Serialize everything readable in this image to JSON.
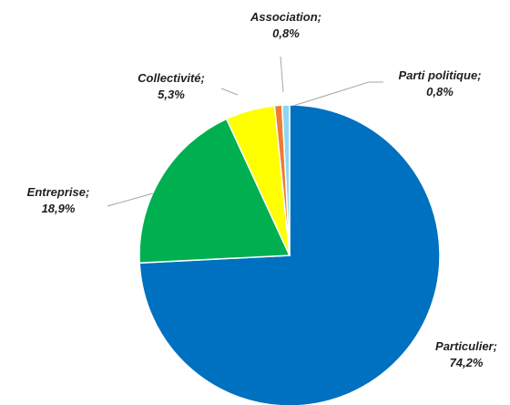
{
  "chart_data": {
    "type": "pie",
    "title": "",
    "series": [
      {
        "name": "",
        "slices": [
          {
            "label": "Particulier",
            "value": 74.2,
            "value_text": "74,2%",
            "color": "#0070C0"
          },
          {
            "label": "Entreprise",
            "value": 18.9,
            "value_text": "18,9%",
            "color": "#00B050"
          },
          {
            "label": "Collectivité",
            "value": 5.3,
            "value_text": "5,3%",
            "color": "#FFFF00"
          },
          {
            "label": "Association",
            "value": 0.8,
            "value_text": "0,8%",
            "color": "#ED7D31"
          },
          {
            "label": "Parti politique",
            "value": 0.8,
            "value_text": "0,8%",
            "color": "#8FD7F0"
          }
        ]
      }
    ],
    "start_angle": "12 o'clock",
    "direction": "clockwise",
    "legend": "none",
    "data_labels": "category; percentage, outside with leader lines"
  }
}
